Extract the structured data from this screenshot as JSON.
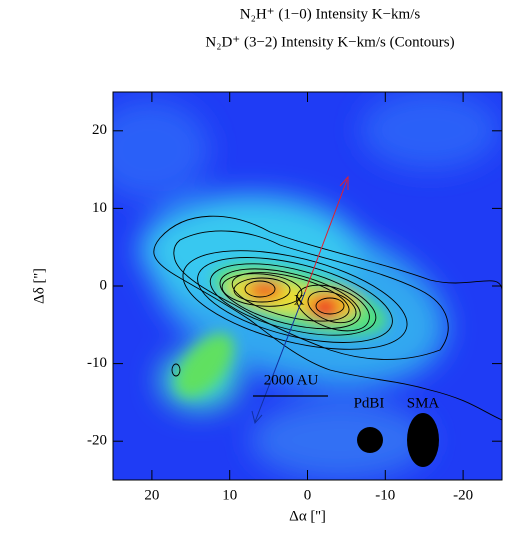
{
  "chart_data": {
    "type": "image",
    "title": "N₂H⁺ (1−0) Intensity K−km/s",
    "subtitle": "N₂D⁺ (3−2) Intensity K−km/s (Contours)",
    "x_label": "Δα ['']",
    "y_label": "Δδ ['']",
    "xlim": [
      25,
      -25
    ],
    "ylim": [
      -25,
      25
    ],
    "xticks": [
      20,
      10,
      0,
      -10,
      -20
    ],
    "yticks": [
      -20,
      -10,
      0,
      10,
      20
    ],
    "annotations": [
      "X",
      "2000 AU",
      "PdBI",
      "SMA"
    ]
  }
}
